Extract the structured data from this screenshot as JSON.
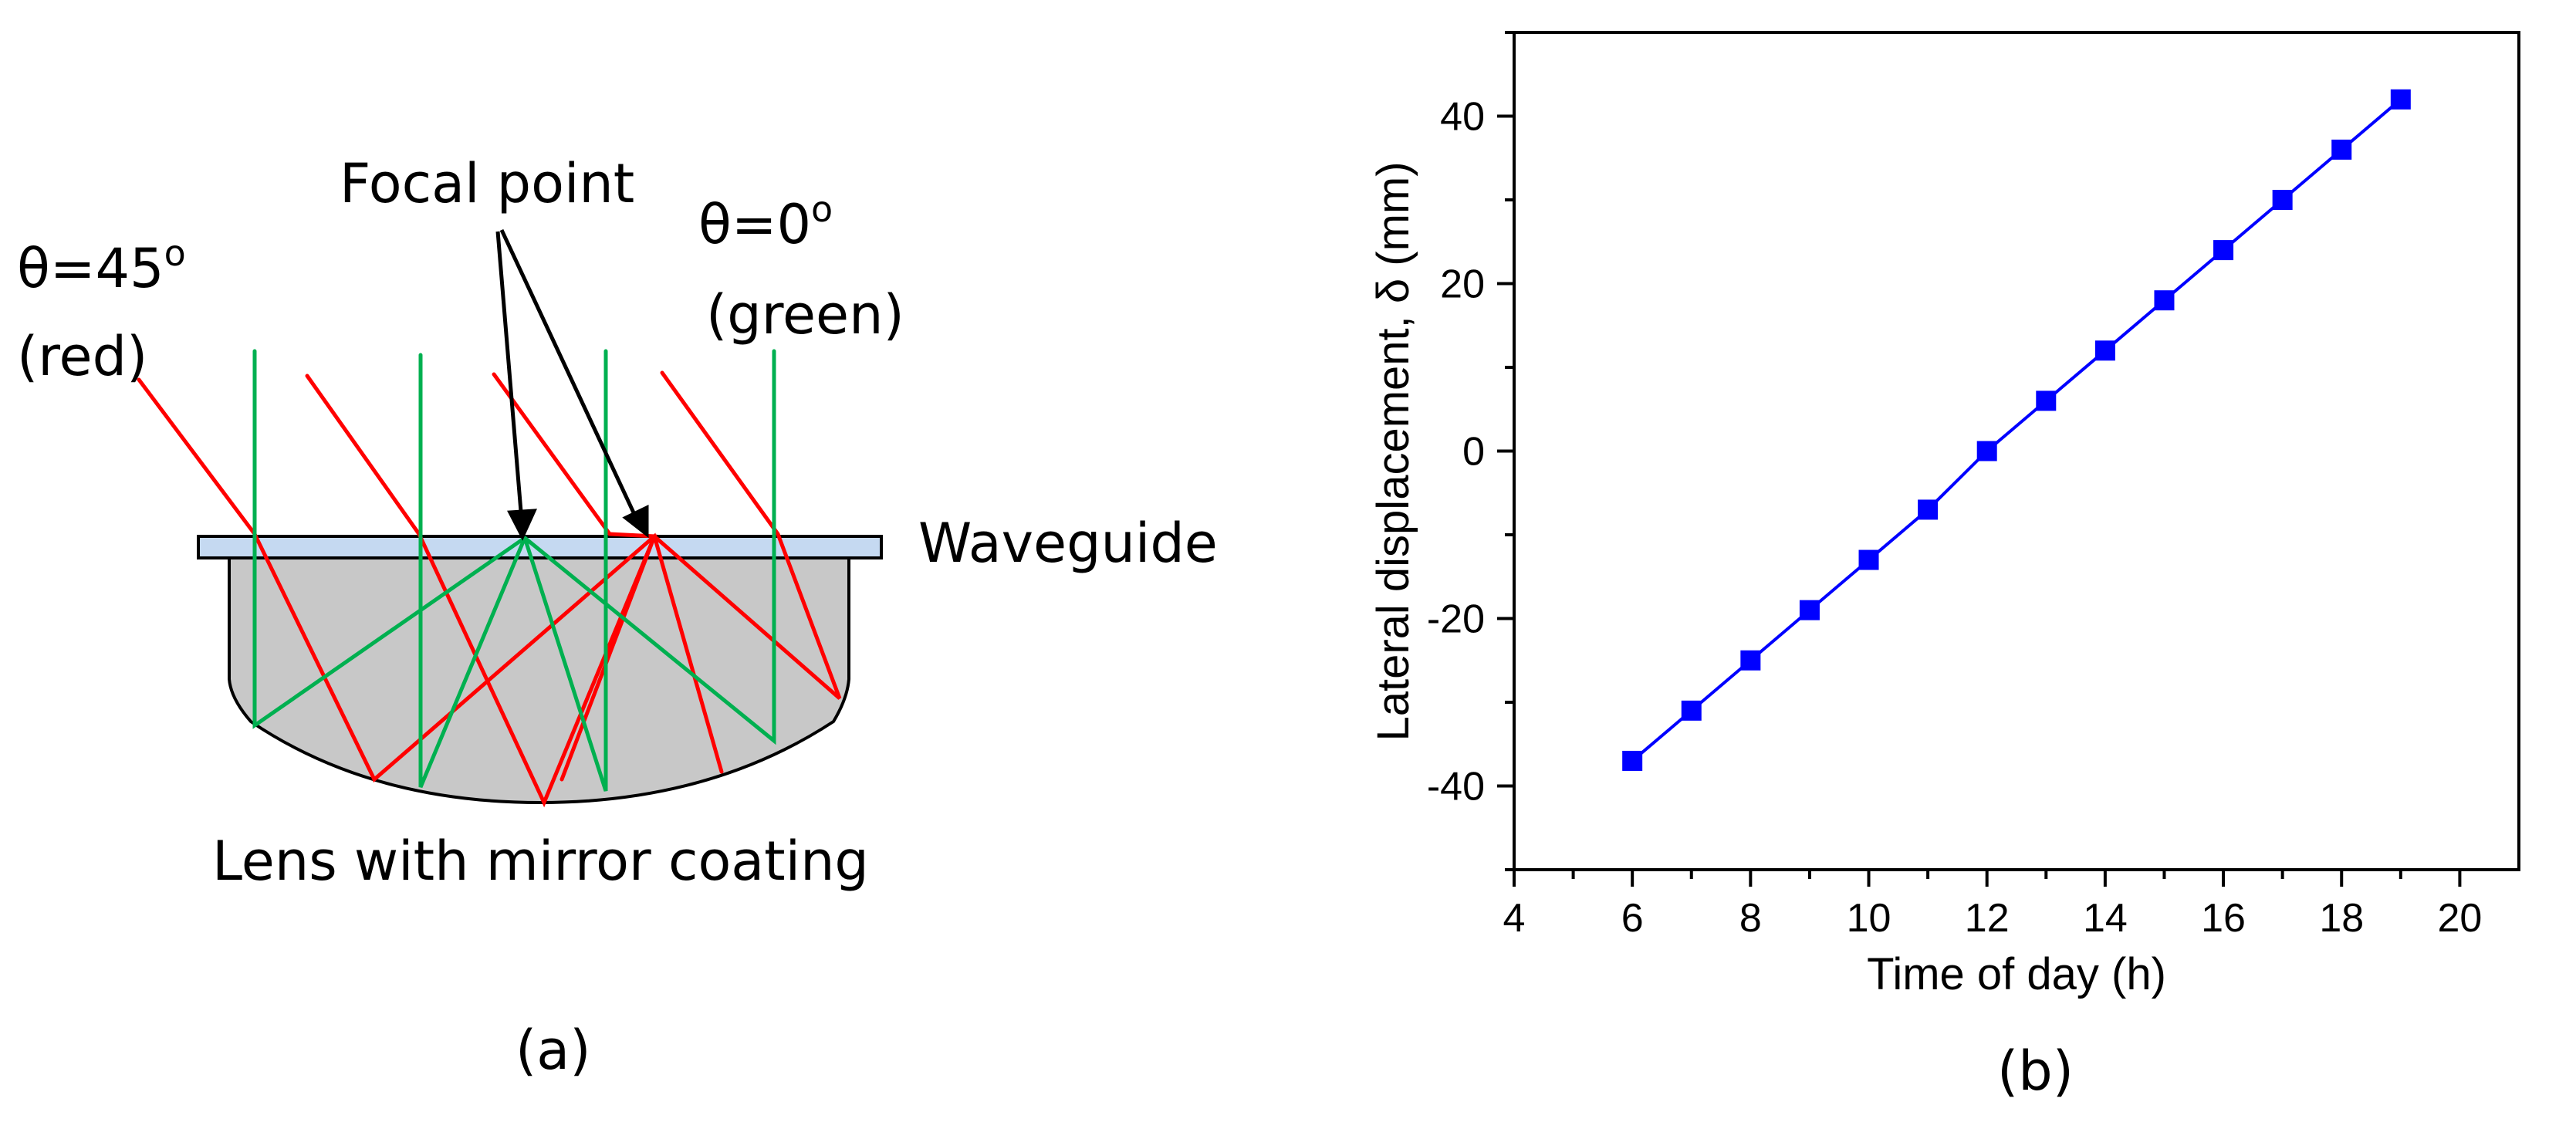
{
  "panel_a": {
    "label": "(a)",
    "angle_red": "θ=45",
    "angle_red_deg": "o",
    "angle_red_color": "(red)",
    "angle_green": "θ=0",
    "angle_green_deg": "o",
    "angle_green_color": "(green)",
    "focal_point_label": "Focal point",
    "waveguide_label": "Waveguide",
    "lens_label": "Lens with mirror coating",
    "colors": {
      "red_ray": "#ff0000",
      "green_ray": "#00b050",
      "waveguide_fill": "#c5d9f1",
      "lens_fill": "#c8c8c8"
    }
  },
  "panel_b": {
    "label": "(b)"
  },
  "chart_data": {
    "type": "line",
    "title": "",
    "xlabel": "Time of day (h)",
    "ylabel": "Lateral displacement, δ (mm)",
    "xlim": [
      4,
      21
    ],
    "ylim": [
      -50,
      50
    ],
    "xticks": [
      4,
      6,
      8,
      10,
      12,
      14,
      16,
      18,
      20
    ],
    "yticks": [
      -40,
      -20,
      0,
      20,
      40
    ],
    "series": [
      {
        "name": "Lateral displacement",
        "color": "#0000ff",
        "marker": "square",
        "x": [
          6,
          7,
          8,
          9,
          10,
          11,
          12,
          13,
          14,
          15,
          16,
          17,
          18,
          19
        ],
        "values": [
          -37,
          -31,
          -25,
          -19,
          -13,
          -7,
          0,
          6,
          12,
          18,
          24,
          30,
          36,
          42
        ]
      }
    ]
  }
}
